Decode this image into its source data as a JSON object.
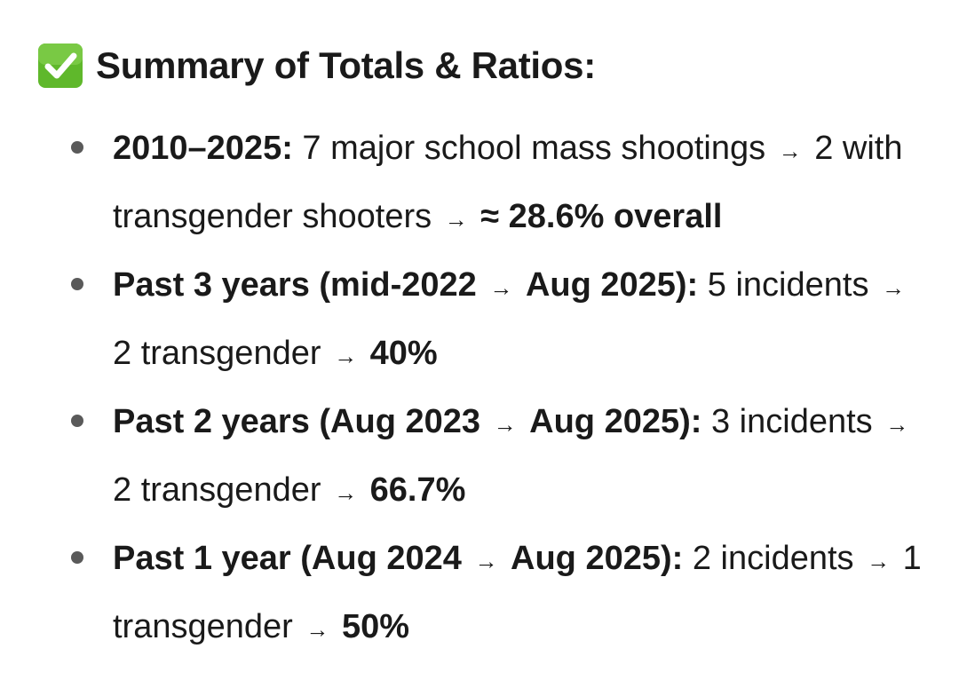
{
  "heading": {
    "icon": "check-mark-button-icon",
    "icon_color": "#5fb82b",
    "title": "Summary of Totals & Ratios:"
  },
  "items": [
    {
      "label": "2010–2025:",
      "text_1": "7 major school mass shootings",
      "text_2": "2 with transgender shooters",
      "result": "≈ 28.6% overall"
    },
    {
      "label_1": "Past 3 years (mid-2022",
      "label_2": "Aug 2025):",
      "text_1": "5 incidents",
      "text_2": "2 transgender",
      "result": "40%"
    },
    {
      "label_1": "Past 2 years (Aug 2023",
      "label_2": "Aug 2025):",
      "text_1": "3 incidents",
      "text_2": "2 transgender",
      "result": "66.7%"
    },
    {
      "label_1": "Past 1 year (Aug 2024",
      "label_2": "Aug 2025):",
      "text_1": "2 incidents",
      "text_2": "1 transgender",
      "result": "50%"
    }
  ],
  "arrow_glyph": "→"
}
